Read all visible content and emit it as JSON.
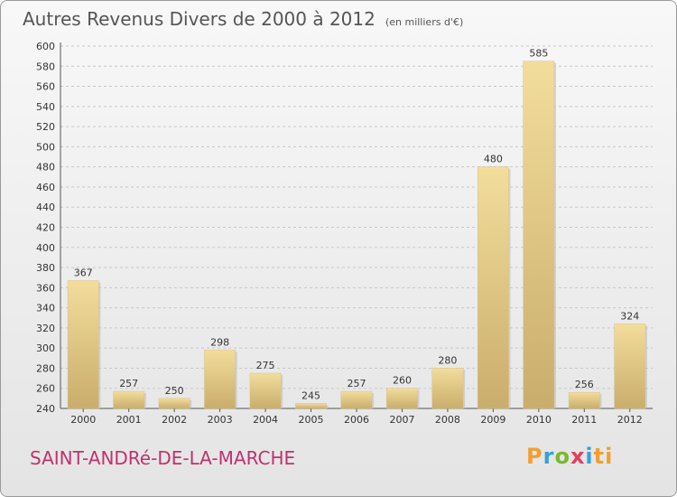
{
  "chart_data": {
    "type": "bar",
    "title": "Autres Revenus Divers de 2000 à 2012",
    "subtitle": "(en milliers d'€)",
    "categories": [
      "2000",
      "2001",
      "2002",
      "2003",
      "2004",
      "2005",
      "2006",
      "2007",
      "2008",
      "2009",
      "2010",
      "2011",
      "2012"
    ],
    "values": [
      367,
      257,
      250,
      298,
      275,
      245,
      257,
      260,
      280,
      480,
      585,
      256,
      324
    ],
    "ylim": [
      240,
      600
    ],
    "yticks": [
      240,
      260,
      280,
      300,
      320,
      340,
      360,
      380,
      400,
      420,
      440,
      460,
      480,
      500,
      520,
      540,
      560,
      580,
      600
    ],
    "grid": true,
    "bar_color": "#e2c98a"
  },
  "footer": {
    "city": "SAINT-ANDRé-DE-LA-MARCHE",
    "logo": [
      "P",
      "r",
      "o",
      "x",
      "i",
      "ti"
    ]
  }
}
